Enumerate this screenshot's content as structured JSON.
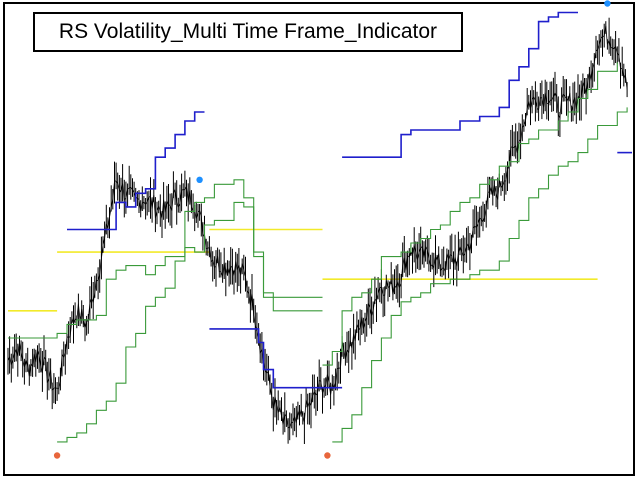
{
  "title": "RS Volatility_Multi Time Frame_Indicator",
  "colors": {
    "price": "#000000",
    "upper_band": "#1f1fcc",
    "stop_lines": "#3a9a3a",
    "level_line": "#f2ea2a",
    "marker_up": "#1e90ff",
    "marker_down": "#e8663c"
  },
  "chart_data": {
    "type": "line",
    "title": "RS Volatility_Multi Time Frame_Indicator",
    "xlabel": "",
    "ylabel": "",
    "grid": false,
    "legend": "none",
    "x_range": [
      0,
      127
    ],
    "ylim": [
      0,
      100
    ],
    "series": [
      {
        "role": "price",
        "values": [
          [
            0,
            22
          ],
          [
            2,
            25
          ],
          [
            4,
            20
          ],
          [
            6,
            24
          ],
          [
            8,
            19
          ],
          [
            10,
            15
          ],
          [
            12,
            27
          ],
          [
            14,
            33
          ],
          [
            16,
            30
          ],
          [
            18,
            40
          ],
          [
            20,
            50
          ],
          [
            22,
            62
          ],
          [
            24,
            59
          ],
          [
            26,
            57
          ],
          [
            28,
            58
          ],
          [
            30,
            56
          ],
          [
            32,
            55
          ],
          [
            34,
            58
          ],
          [
            36,
            59
          ],
          [
            38,
            57
          ],
          [
            40,
            50
          ],
          [
            42,
            44
          ],
          [
            44,
            43
          ],
          [
            46,
            43
          ],
          [
            48,
            41
          ],
          [
            50,
            34
          ],
          [
            52,
            22
          ],
          [
            54,
            13
          ],
          [
            56,
            8
          ],
          [
            58,
            7
          ],
          [
            60,
            10
          ],
          [
            62,
            13
          ],
          [
            64,
            17
          ],
          [
            66,
            16
          ],
          [
            68,
            24
          ],
          [
            70,
            26
          ],
          [
            72,
            30
          ],
          [
            74,
            34
          ],
          [
            76,
            39
          ],
          [
            78,
            38
          ],
          [
            80,
            41
          ],
          [
            82,
            47
          ],
          [
            84,
            45
          ],
          [
            86,
            45
          ],
          [
            88,
            43
          ],
          [
            90,
            44
          ],
          [
            92,
            45
          ],
          [
            94,
            48
          ],
          [
            96,
            53
          ],
          [
            98,
            58
          ],
          [
            100,
            60
          ],
          [
            102,
            66
          ],
          [
            104,
            71
          ],
          [
            106,
            79
          ],
          [
            108,
            80
          ],
          [
            110,
            81
          ],
          [
            112,
            78
          ],
          [
            114,
            79
          ],
          [
            116,
            80
          ],
          [
            118,
            83
          ],
          [
            120,
            93
          ],
          [
            122,
            94
          ],
          [
            124,
            92
          ],
          [
            126,
            82
          ]
        ]
      },
      {
        "role": "upper_band",
        "segments": [
          [
            [
              12,
              51
            ],
            [
              20,
              51
            ],
            [
              22,
              57
            ],
            [
              24,
              56
            ],
            [
              26,
              59
            ],
            [
              28,
              60
            ],
            [
              30,
              67
            ],
            [
              32,
              69
            ],
            [
              34,
              72
            ],
            [
              36,
              75
            ],
            [
              38,
              77
            ],
            [
              40,
              77
            ]
          ],
          [
            [
              41,
              29
            ],
            [
              49,
              29
            ],
            [
              51,
              26
            ],
            [
              52,
              20
            ],
            [
              54,
              16
            ],
            [
              56,
              16
            ],
            [
              68,
              16
            ]
          ],
          [
            [
              68,
              67
            ],
            [
              78,
              67
            ],
            [
              80,
              72
            ],
            [
              82,
              73
            ],
            [
              84,
              73
            ],
            [
              88,
              73
            ],
            [
              92,
              75
            ],
            [
              96,
              76
            ],
            [
              100,
              78
            ],
            [
              102,
              84
            ],
            [
              104,
              87
            ],
            [
              106,
              91
            ],
            [
              108,
              97
            ],
            [
              110,
              98
            ],
            [
              112,
              99
            ],
            [
              114,
              99
            ],
            [
              116,
              99
            ]
          ],
          [
            [
              124,
              68
            ],
            [
              127,
              68
            ]
          ]
        ]
      },
      {
        "role": "stop_line_slow",
        "segments": [
          [
            [
              0,
              27
            ],
            [
              8,
              27
            ],
            [
              10,
              28
            ],
            [
              12,
              30
            ],
            [
              14,
              31
            ],
            [
              16,
              31
            ],
            [
              18,
              32
            ],
            [
              20,
              40
            ],
            [
              22,
              42
            ],
            [
              24,
              43
            ],
            [
              26,
              43
            ],
            [
              28,
              41
            ],
            [
              30,
              43
            ],
            [
              32,
              45
            ],
            [
              34,
              45
            ],
            [
              36,
              55
            ],
            [
              38,
              57
            ],
            [
              40,
              58
            ],
            [
              42,
              61
            ],
            [
              44,
              61
            ],
            [
              46,
              62
            ],
            [
              48,
              58
            ],
            [
              50,
              45
            ],
            [
              52,
              36
            ],
            [
              54,
              33
            ],
            [
              56,
              33
            ],
            [
              62,
              33
            ],
            [
              64,
              33
            ]
          ],
          [
            [
              66,
              4
            ],
            [
              68,
              7
            ],
            [
              70,
              10
            ],
            [
              72,
              16
            ],
            [
              74,
              22
            ],
            [
              76,
              27
            ],
            [
              78,
              32
            ],
            [
              80,
              35
            ],
            [
              82,
              36
            ],
            [
              84,
              37
            ],
            [
              86,
              39
            ],
            [
              88,
              39
            ],
            [
              90,
              40
            ],
            [
              92,
              40
            ],
            [
              94,
              41
            ],
            [
              96,
              42
            ],
            [
              98,
              42
            ],
            [
              100,
              44
            ],
            [
              102,
              49
            ],
            [
              104,
              53
            ],
            [
              106,
              58
            ],
            [
              108,
              60
            ],
            [
              110,
              63
            ],
            [
              112,
              65
            ],
            [
              114,
              66
            ],
            [
              116,
              68
            ],
            [
              118,
              71
            ],
            [
              120,
              74
            ],
            [
              122,
              74
            ],
            [
              124,
              77
            ],
            [
              126,
              78
            ]
          ]
        ]
      },
      {
        "role": "stop_line_fast",
        "segments": [
          [
            [
              10,
              4
            ],
            [
              12,
              5
            ],
            [
              14,
              6
            ],
            [
              16,
              8
            ],
            [
              18,
              11
            ],
            [
              20,
              13
            ],
            [
              22,
              17
            ],
            [
              24,
              25
            ],
            [
              26,
              28
            ],
            [
              28,
              34
            ],
            [
              30,
              36
            ],
            [
              32,
              38
            ],
            [
              34,
              44
            ],
            [
              36,
              47
            ],
            [
              38,
              46
            ],
            [
              40,
              52
            ],
            [
              42,
              53
            ],
            [
              44,
              53
            ],
            [
              46,
              57
            ],
            [
              48,
              56
            ],
            [
              50,
              46
            ],
            [
              52,
              37
            ],
            [
              54,
              36
            ],
            [
              62,
              36
            ],
            [
              64,
              36
            ]
          ],
          [
            [
              64,
              21
            ],
            [
              66,
              24
            ],
            [
              68,
              33
            ],
            [
              70,
              36
            ],
            [
              72,
              37
            ],
            [
              74,
              40
            ],
            [
              76,
              45
            ],
            [
              78,
              45
            ],
            [
              80,
              46
            ],
            [
              82,
              48
            ],
            [
              84,
              49
            ],
            [
              86,
              51
            ],
            [
              88,
              52
            ],
            [
              90,
              55
            ],
            [
              92,
              57
            ],
            [
              94,
              58
            ],
            [
              96,
              61
            ],
            [
              98,
              62
            ],
            [
              100,
              65
            ],
            [
              102,
              66
            ],
            [
              104,
              70
            ],
            [
              106,
              71
            ],
            [
              108,
              73
            ],
            [
              110,
              73
            ],
            [
              112,
              75
            ],
            [
              114,
              77
            ],
            [
              116,
              80
            ],
            [
              118,
              82
            ],
            [
              120,
              86
            ],
            [
              122,
              86
            ],
            [
              124,
              88
            ]
          ]
        ]
      },
      {
        "role": "level_line",
        "segments": [
          [
            [
              0,
              33
            ],
            [
              10,
              33
            ]
          ],
          [
            [
              10,
              46
            ],
            [
              41,
              46
            ]
          ],
          [
            [
              41,
              51
            ],
            [
              64,
              51
            ]
          ],
          [
            [
              64,
              40
            ],
            [
              120,
              40
            ]
          ]
        ]
      },
      {
        "role": "marker_up",
        "points": [
          [
            39,
            62
          ],
          [
            122,
            101
          ]
        ]
      },
      {
        "role": "marker_down",
        "points": [
          [
            10,
            1
          ],
          [
            65,
            1
          ]
        ]
      }
    ]
  }
}
